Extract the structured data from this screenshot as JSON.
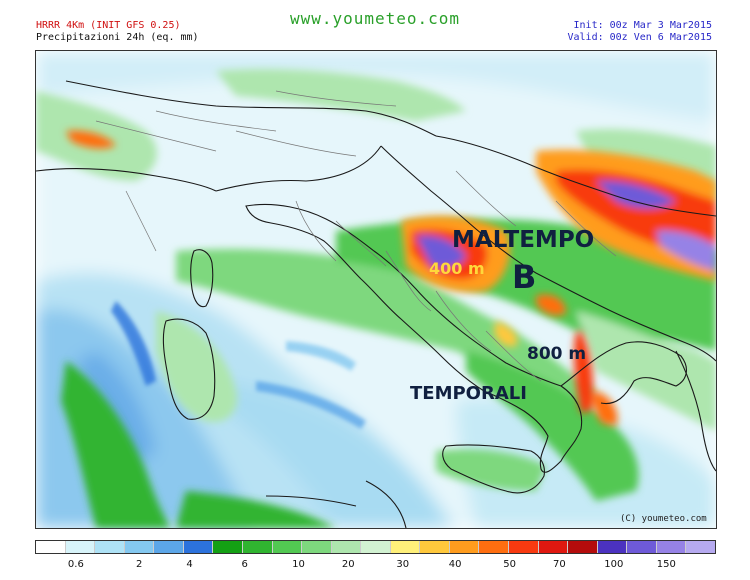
{
  "header": {
    "model_title": "HRRR 4Km (INIT GFS 0.25)",
    "subtitle": "Precipitazioni 24h (eq. mm)",
    "site": "www.youmeteo.com",
    "init": "Init: 00z Mar 3   Mar2015",
    "valid": "Valid: 00z Ven 6   Mar2015"
  },
  "annotations": {
    "maltempo": "MALTEMPO",
    "snow_400": "400 m",
    "low": "B",
    "snow_800": "800 m",
    "temporali": "TEMPORALI"
  },
  "copyright": "(C) youmeteo.com",
  "legend": {
    "colors": [
      "#ffffff",
      "#d8f4fa",
      "#aee2f6",
      "#84c8f0",
      "#5ca6e8",
      "#2c72dc",
      "#14a014",
      "#30b430",
      "#52c852",
      "#7ed87e",
      "#aee6ae",
      "#d2f2d2",
      "#fff07a",
      "#ffc83c",
      "#ff9c1e",
      "#ff6e10",
      "#f83a10",
      "#e01810",
      "#b40c0c",
      "#4b32c0",
      "#6e5ad8",
      "#9682e6",
      "#b6aaf0"
    ],
    "ticks": [
      {
        "label": "0.6",
        "pos": 0.06
      },
      {
        "label": "2",
        "pos": 0.153
      },
      {
        "label": "4",
        "pos": 0.227
      },
      {
        "label": "6",
        "pos": 0.308
      },
      {
        "label": "10",
        "pos": 0.387
      },
      {
        "label": "20",
        "pos": 0.46
      },
      {
        "label": "30",
        "pos": 0.54
      },
      {
        "label": "40",
        "pos": 0.617
      },
      {
        "label": "50",
        "pos": 0.697
      },
      {
        "label": "70",
        "pos": 0.77
      },
      {
        "label": "100",
        "pos": 0.85
      },
      {
        "label": "150",
        "pos": 0.927
      }
    ]
  }
}
